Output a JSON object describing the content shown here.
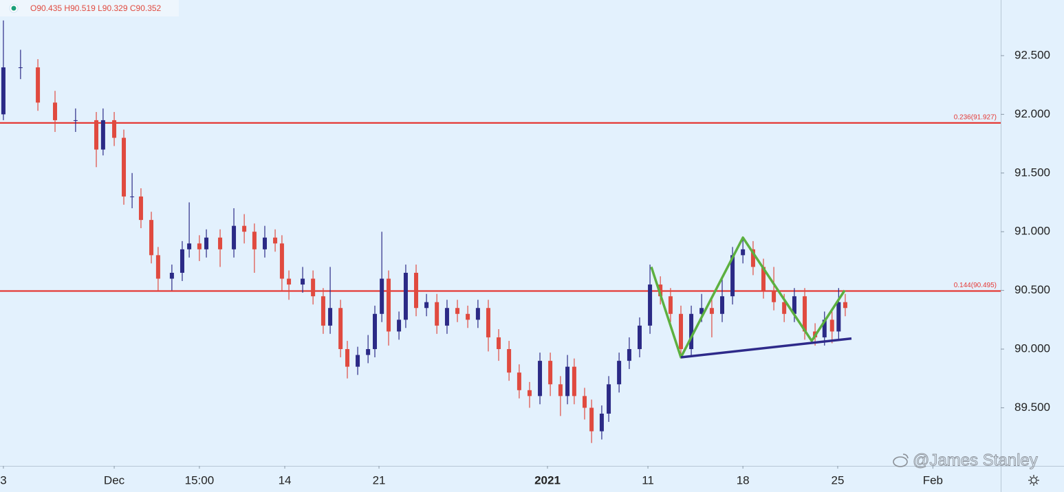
{
  "chart_data": {
    "type": "candlestick",
    "header": {
      "open_label": "O",
      "open": 90.435,
      "high_label": "H",
      "high": 90.519,
      "low_label": "L",
      "low": 90.329,
      "close_label": "C",
      "close": 90.352
    },
    "watermark": "@James Stanley",
    "up_color": "#2b2a86",
    "down_color": "#e04a3f",
    "xlim": [
      0,
      53.1
    ],
    "xticks": [
      {
        "value": 0.18,
        "label": "3"
      },
      {
        "value": 6.06,
        "label": "Dec"
      },
      {
        "value": 10.58,
        "label": "15:00"
      },
      {
        "value": 15.11,
        "label": "14"
      },
      {
        "value": 20.11,
        "label": "21"
      },
      {
        "value": 29.05,
        "label": "2021"
      },
      {
        "value": 34.38,
        "label": "11"
      },
      {
        "value": 39.42,
        "label": "18"
      },
      {
        "value": 44.45,
        "label": "25"
      },
      {
        "value": 49.5,
        "label": "Feb"
      }
    ],
    "ylim": [
      89.005,
      92.974
    ],
    "yticks": [
      {
        "value": 89.5,
        "label": "89.500"
      },
      {
        "value": 90,
        "label": "90.000"
      },
      {
        "value": 90.5,
        "label": "90.500"
      },
      {
        "value": 91,
        "label": "91.000"
      },
      {
        "value": 91.5,
        "label": "91.500"
      },
      {
        "value": 92,
        "label": "92.000"
      },
      {
        "value": 92.5,
        "label": "92.500"
      }
    ],
    "levels": [
      {
        "label": "0.236(91.927)",
        "value": 91.927,
        "color": "#e53935"
      },
      {
        "label": "0.144(90.495)",
        "value": 90.495,
        "color": "#e53935"
      }
    ],
    "drawings": [
      {
        "color": "#5cb040",
        "x": [
          34.56,
          36.13,
          39.42,
          43.07,
          44.82
        ],
        "y": [
          90.7,
          89.93,
          90.95,
          90.07,
          90.5
        ]
      },
      {
        "color": "#2e2a8a",
        "x": [
          36.13,
          45.18
        ],
        "y": [
          89.93,
          90.09
        ]
      }
    ],
    "x": [
      0.18,
      1.09,
      2.01,
      2.92,
      4.01,
      5.11,
      5.47,
      6.06,
      6.57,
      7.01,
      7.48,
      8.03,
      8.39,
      9.12,
      9.67,
      10.04,
      10.58,
      10.95,
      11.68,
      12.41,
      12.96,
      13.5,
      14.05,
      14.6,
      14.96,
      15.33,
      16.06,
      16.61,
      17.15,
      17.52,
      18.07,
      18.43,
      18.98,
      19.53,
      19.89,
      20.26,
      20.62,
      21.17,
      21.53,
      22.08,
      22.63,
      23.18,
      23.72,
      24.27,
      24.82,
      25.36,
      25.91,
      26.46,
      27.01,
      27.55,
      28.1,
      28.65,
      29.2,
      29.74,
      30.11,
      30.47,
      31.02,
      31.39,
      31.93,
      32.3,
      32.85,
      33.39,
      33.94,
      34.49,
      35.04,
      35.58,
      36.13,
      36.68,
      37.23,
      37.77,
      38.32,
      38.87,
      39.42,
      39.96,
      40.51,
      41.06,
      41.61,
      42.15,
      42.7,
      43.25,
      43.75,
      44.15,
      44.5,
      44.85
    ],
    "open": [
      92.0,
      92.4,
      92.4,
      92.1,
      91.95,
      91.95,
      91.7,
      91.95,
      91.8,
      91.3,
      91.3,
      91.1,
      90.8,
      90.6,
      90.65,
      90.85,
      90.9,
      90.85,
      90.95,
      90.85,
      91.05,
      91.0,
      90.85,
      90.95,
      90.9,
      90.6,
      90.55,
      90.6,
      90.45,
      90.2,
      90.35,
      90.0,
      89.85,
      89.95,
      90.0,
      90.3,
      90.6,
      90.15,
      90.25,
      90.65,
      90.35,
      90.4,
      90.2,
      90.35,
      90.3,
      90.25,
      90.35,
      90.1,
      90.0,
      89.8,
      89.65,
      89.6,
      89.9,
      89.7,
      89.6,
      89.85,
      89.6,
      89.5,
      89.3,
      89.45,
      89.7,
      89.9,
      90.0,
      90.2,
      90.55,
      90.45,
      90.3,
      90.0,
      90.3,
      90.35,
      90.3,
      90.45,
      90.8,
      90.85,
      90.7,
      90.5,
      90.4,
      90.3,
      90.45,
      90.15,
      90.1,
      90.25,
      90.15,
      90.4
    ],
    "high": [
      92.8,
      92.55,
      92.47,
      92.2,
      92.05,
      92.02,
      92.05,
      92.02,
      91.87,
      91.5,
      91.37,
      91.17,
      90.87,
      90.72,
      90.92,
      91.25,
      90.97,
      91.02,
      91.02,
      91.2,
      91.15,
      91.07,
      91.05,
      91.02,
      90.97,
      90.67,
      90.7,
      90.67,
      90.52,
      90.7,
      90.42,
      90.07,
      90.02,
      90.12,
      90.37,
      91.0,
      90.67,
      90.32,
      90.72,
      90.72,
      90.47,
      90.47,
      90.42,
      90.42,
      90.37,
      90.42,
      90.42,
      90.17,
      90.07,
      89.87,
      89.72,
      89.97,
      89.97,
      89.77,
      89.95,
      89.92,
      89.67,
      89.57,
      89.52,
      89.77,
      89.97,
      90.1,
      90.27,
      90.72,
      90.62,
      90.52,
      90.37,
      90.37,
      90.47,
      90.42,
      90.6,
      90.87,
      90.95,
      90.92,
      90.77,
      90.7,
      90.47,
      90.52,
      90.52,
      90.22,
      90.32,
      90.32,
      90.52,
      90.47
    ],
    "low": [
      91.95,
      92.3,
      92.03,
      91.85,
      91.85,
      91.55,
      91.65,
      91.73,
      91.23,
      91.2,
      91.03,
      90.73,
      90.5,
      90.5,
      90.58,
      90.78,
      90.75,
      90.78,
      90.7,
      90.78,
      90.9,
      90.65,
      90.78,
      90.83,
      90.5,
      90.42,
      90.48,
      90.38,
      90.13,
      90.13,
      89.93,
      89.75,
      89.78,
      89.88,
      89.93,
      90.23,
      90.03,
      90.08,
      90.18,
      90.28,
      90.28,
      90.13,
      90.13,
      90.23,
      90.18,
      90.18,
      89.98,
      89.9,
      89.73,
      89.58,
      89.5,
      89.53,
      89.6,
      89.43,
      89.53,
      89.53,
      89.4,
      89.2,
      89.23,
      89.38,
      89.63,
      89.83,
      89.93,
      90.13,
      90.38,
      90.23,
      89.93,
      89.93,
      90.23,
      90.1,
      90.23,
      90.38,
      90.73,
      90.63,
      90.43,
      90.33,
      90.23,
      90.23,
      90.08,
      90.03,
      90.03,
      90.05,
      90.08,
      90.28
    ],
    "close": [
      92.4,
      92.4,
      92.1,
      91.95,
      91.95,
      91.7,
      91.95,
      91.8,
      91.3,
      91.3,
      91.1,
      90.8,
      90.6,
      90.65,
      90.85,
      90.9,
      90.85,
      90.95,
      90.85,
      91.05,
      91.0,
      90.85,
      90.95,
      90.9,
      90.6,
      90.55,
      90.6,
      90.45,
      90.2,
      90.35,
      90.0,
      89.85,
      89.95,
      90.0,
      90.3,
      90.6,
      90.15,
      90.25,
      90.65,
      90.35,
      90.4,
      90.2,
      90.35,
      90.3,
      90.25,
      90.35,
      90.1,
      90.0,
      89.8,
      89.65,
      89.6,
      89.9,
      89.7,
      89.6,
      89.85,
      89.6,
      89.5,
      89.3,
      89.45,
      89.7,
      89.9,
      90.0,
      90.2,
      90.55,
      90.45,
      90.3,
      90.0,
      90.3,
      90.35,
      90.3,
      90.45,
      90.8,
      90.85,
      90.7,
      90.5,
      90.4,
      90.3,
      90.45,
      90.15,
      90.1,
      90.25,
      90.15,
      90.4,
      90.35
    ]
  }
}
